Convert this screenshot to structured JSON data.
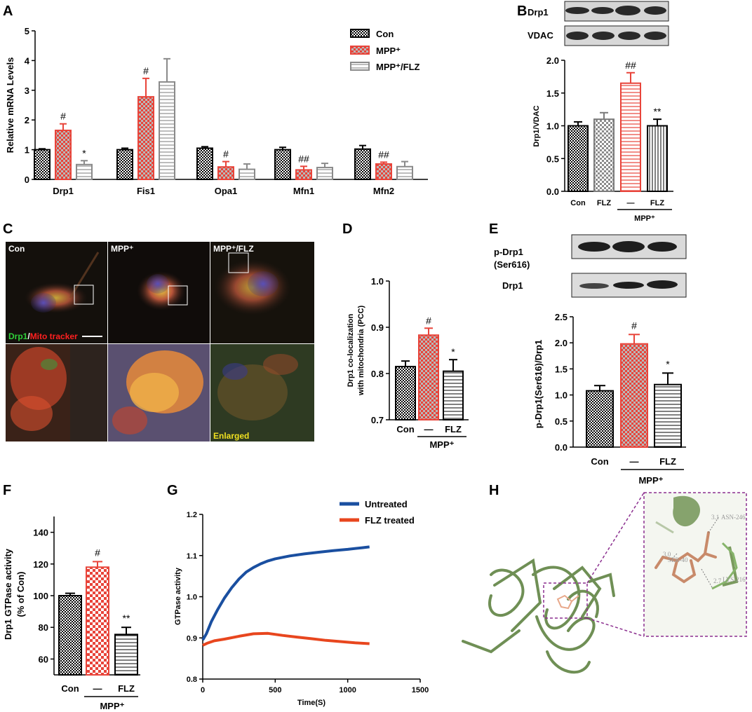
{
  "panel_letters": {
    "A": "A",
    "B": "B",
    "C": "C",
    "D": "D",
    "E": "E",
    "F": "F",
    "G": "G",
    "H": "H"
  },
  "colors": {
    "red": "#e8443a",
    "blue": "#1a4fa0",
    "orange": "#e8461e",
    "green": "#7a9a5e",
    "purple": "#8b2f8f",
    "black": "#000000"
  },
  "panel_C": {
    "columns": [
      "Con",
      "MPP⁺",
      "MPP⁺/FLZ"
    ],
    "stain_label_green": "Drp1",
    "stain_label_sep": "/",
    "stain_label_red": "Mito tracker",
    "enlarged_label": "Enlarged"
  },
  "panel_H": {
    "residues": [
      "ASN-246",
      "SER-40",
      "LYS-216"
    ],
    "distances": [
      "3.1",
      "3.0",
      "2.7"
    ]
  },
  "chart_data": [
    {
      "panel": "A",
      "type": "bar",
      "ylabel": "Relative mRNA Levels",
      "ylim": [
        0,
        5
      ],
      "yticks": [
        "0",
        "1",
        "2",
        "3",
        "4",
        "5"
      ],
      "categories": [
        "Drp1",
        "Fis1",
        "Opa1",
        "Mfn1",
        "Mfn2"
      ],
      "legend_position": "top-right",
      "series": [
        {
          "name": "Con",
          "values": [
            1.0,
            1.0,
            1.05,
            1.0,
            1.02
          ],
          "errors": [
            0.03,
            0.05,
            0.05,
            0.08,
            0.12
          ],
          "sig": [
            "",
            "",
            "",
            "",
            ""
          ]
        },
        {
          "name": "MPP⁺",
          "values": [
            1.65,
            2.78,
            0.42,
            0.32,
            0.52
          ],
          "errors": [
            0.22,
            0.62,
            0.18,
            0.12,
            0.06
          ],
          "sig": [
            "#",
            "#",
            "#",
            "##",
            "##"
          ]
        },
        {
          "name": "MPP⁺/FLZ",
          "values": [
            0.5,
            3.28,
            0.34,
            0.4,
            0.43
          ],
          "errors": [
            0.13,
            0.78,
            0.18,
            0.14,
            0.17
          ],
          "sig": [
            "*",
            "",
            "",
            "",
            ""
          ]
        }
      ]
    },
    {
      "panel": "B",
      "type": "bar",
      "blot_labels": [
        "Drp1",
        "VDAC"
      ],
      "ylabel": "Drp1/VDAC",
      "ylim": [
        0,
        2.0
      ],
      "yticks": [
        "0.0",
        "0.5",
        "1.0",
        "1.5",
        "2.0"
      ],
      "categories": [
        "Con",
        "FLZ",
        "—",
        "FLZ"
      ],
      "group_label": "MPP⁺",
      "values": [
        1.0,
        1.1,
        1.65,
        1.0
      ],
      "errors": [
        0.06,
        0.1,
        0.16,
        0.1
      ],
      "sig": [
        "",
        "",
        "##",
        "**"
      ]
    },
    {
      "panel": "D",
      "type": "bar",
      "ylabel_line1": "Drp1 co-localization",
      "ylabel_line2": "with mitochondria  (PCC)",
      "ylim": [
        0.7,
        1.0
      ],
      "yticks": [
        "0.7",
        "0.8",
        "0.9",
        "1.0"
      ],
      "categories": [
        "Con",
        "—",
        "FLZ"
      ],
      "group_label": "MPP⁺",
      "values": [
        0.815,
        0.883,
        0.805
      ],
      "errors": [
        0.012,
        0.015,
        0.025
      ],
      "sig": [
        "",
        "#",
        "*"
      ]
    },
    {
      "panel": "E",
      "type": "bar",
      "blot_labels": [
        "p-Drp1",
        "(Ser616)",
        "Drp1"
      ],
      "ylabel": "p-Drp1(Ser616)/Drp1",
      "ylim": [
        0,
        2.5
      ],
      "yticks": [
        "0.0",
        "0.5",
        "1.0",
        "1.5",
        "2.0",
        "2.5"
      ],
      "categories": [
        "Con",
        "—",
        "FLZ"
      ],
      "group_label": "MPP⁺",
      "values": [
        1.08,
        1.98,
        1.2
      ],
      "errors": [
        0.1,
        0.18,
        0.22
      ],
      "sig": [
        "",
        "#",
        "*"
      ]
    },
    {
      "panel": "F",
      "type": "bar",
      "ylabel_line1": "Drp1 GTPase activity",
      "ylabel_line2": "(% of Con)",
      "ylim": [
        50,
        150
      ],
      "yticks": [
        "60",
        "80",
        "100",
        "120",
        "140"
      ],
      "categories": [
        "Con",
        "—",
        "FLZ"
      ],
      "group_label": "MPP⁺",
      "values": [
        100,
        118,
        75.5
      ],
      "errors": [
        1.5,
        3.5,
        4.5
      ],
      "sig": [
        "",
        "#",
        "**"
      ]
    },
    {
      "panel": "G",
      "type": "line",
      "xlabel": "Time(S)",
      "ylabel": "GTPase activity",
      "xlim": [
        0,
        1500
      ],
      "ylim": [
        0.8,
        1.2
      ],
      "xticks": [
        "0",
        "500",
        "1000",
        "1500"
      ],
      "yticks": [
        "0.8",
        "0.9",
        "1.0",
        "1.1",
        "1.2"
      ],
      "legend_position": "top-right",
      "series": [
        {
          "name": "Untreated",
          "x": [
            0,
            25,
            60,
            100,
            150,
            200,
            250,
            300,
            350,
            400,
            450,
            500,
            600,
            700,
            800,
            900,
            1000,
            1100,
            1150
          ],
          "y": [
            0.895,
            0.91,
            0.94,
            0.967,
            0.997,
            1.022,
            1.043,
            1.06,
            1.071,
            1.08,
            1.087,
            1.092,
            1.099,
            1.104,
            1.108,
            1.112,
            1.115,
            1.119,
            1.121
          ]
        },
        {
          "name": "FLZ treated",
          "x": [
            0,
            30,
            80,
            150,
            250,
            350,
            450,
            550,
            650,
            750,
            850,
            950,
            1050,
            1150
          ],
          "y": [
            0.882,
            0.887,
            0.893,
            0.897,
            0.904,
            0.91,
            0.911,
            0.906,
            0.902,
            0.898,
            0.894,
            0.891,
            0.888,
            0.886
          ]
        }
      ]
    }
  ]
}
